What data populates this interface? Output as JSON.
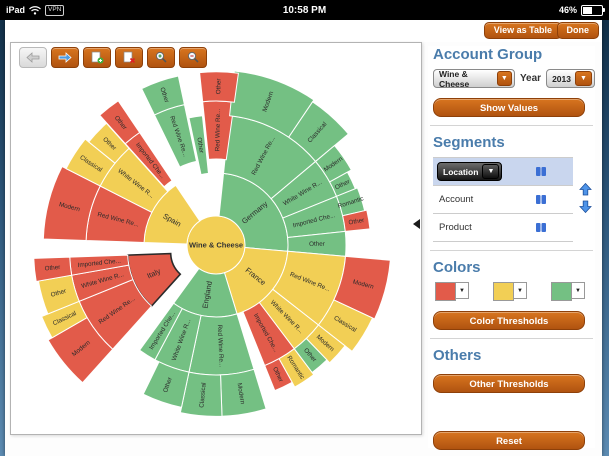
{
  "status_bar": {
    "device": "iPad",
    "vpn_badge": "VPN",
    "time": "10:58 PM",
    "battery": "46%"
  },
  "topbar": {
    "view_as_table": "View as Table",
    "done": "Done"
  },
  "toolbar": {
    "buttons": [
      "history-back",
      "history-forward",
      "export-add",
      "export-remove",
      "zoom-in",
      "zoom-out"
    ]
  },
  "sidebar": {
    "account_group": {
      "title": "Account Group",
      "group_value": "Wine & Cheese",
      "year_label": "Year",
      "year_value": "2013",
      "show_values": "Show Values"
    },
    "segments": {
      "title": "Segments",
      "rows": [
        {
          "label": "Location",
          "selected": true,
          "dropdown": true
        },
        {
          "label": "Account",
          "selected": false,
          "dropdown": false
        },
        {
          "label": "Product",
          "selected": false,
          "dropdown": false
        }
      ]
    },
    "colors": {
      "title": "Colors",
      "swatches": [
        "#E25B4A",
        "#F2CF55",
        "#74C083"
      ],
      "threshold_button": "Color Thresholds"
    },
    "others": {
      "title": "Others",
      "threshold_button": "Other Thresholds"
    },
    "reset_button": "Reset"
  },
  "chart_data": {
    "type": "sunburst",
    "hub": {
      "label": "Wine & Cheese",
      "color": "yellow"
    },
    "palette": {
      "red": "#E25B4A",
      "yellow": "#F2CF55",
      "green": "#74C083"
    },
    "rings": {
      "hub_r": 29,
      "r1": [
        29,
        72
      ],
      "r2": [
        72,
        130
      ],
      "r3_base": 130,
      "r3_extra": 45
    },
    "arcs": [
      {
        "ring": 1,
        "label": "Germany",
        "color": "green",
        "a0": 6,
        "a1": 95
      },
      {
        "ring": 1,
        "label": "France",
        "color": "yellow",
        "a0": 95,
        "a1": 163
      },
      {
        "ring": 1,
        "label": "England",
        "color": "green",
        "a0": 163,
        "a1": 216
      },
      {
        "ring": 1,
        "label": "Italy",
        "color": "red",
        "a0": 222,
        "a1": 268,
        "ea": 245,
        "ed": 18,
        "selected": true
      },
      {
        "ring": 1,
        "label": "Spain",
        "color": "yellow",
        "a0": 272,
        "a1": 326
      },
      {
        "ring": 2,
        "label": "Red Wine Re...",
        "color": "green",
        "a0": 6,
        "a1": 50
      },
      {
        "ring": 2,
        "label": "White Wine R...",
        "color": "green",
        "a0": 50,
        "a1": 68
      },
      {
        "ring": 2,
        "label": "Imported Che...",
        "color": "green",
        "a0": 68,
        "a1": 84
      },
      {
        "ring": 2,
        "label": "Other",
        "color": "green",
        "a0": 84,
        "a1": 95
      },
      {
        "ring": 2,
        "label": "Red Wine Re...",
        "color": "yellow",
        "a0": 95,
        "a1": 128
      },
      {
        "ring": 2,
        "label": "White Wine R...",
        "color": "yellow",
        "a0": 128,
        "a1": 143
      },
      {
        "ring": 2,
        "label": "Imported Che...",
        "color": "red",
        "a0": 143,
        "a1": 158
      },
      {
        "ring": 2,
        "label": "Red Wine Re...",
        "color": "green",
        "a0": 163,
        "a1": 192
      },
      {
        "ring": 2,
        "label": "White Wine R...",
        "color": "green",
        "a0": 192,
        "a1": 208
      },
      {
        "ring": 2,
        "label": "Imported Che...",
        "color": "green",
        "a0": 208,
        "a1": 216
      },
      {
        "ring": 2,
        "label": "Red Wine Re...",
        "color": "red",
        "a0": 222,
        "a1": 248,
        "ea": 245,
        "ed": 18
      },
      {
        "ring": 2,
        "label": "White Wine R...",
        "color": "red",
        "a0": 248,
        "a1": 260,
        "ea": 245,
        "ed": 18
      },
      {
        "ring": 2,
        "label": "Imported Che...",
        "color": "red",
        "a0": 260,
        "a1": 268,
        "ea": 245,
        "ed": 18
      },
      {
        "ring": 2,
        "label": "Red Wine Re...",
        "color": "red",
        "a0": 272,
        "a1": 297
      },
      {
        "ring": 2,
        "label": "White Wine R...",
        "color": "yellow",
        "a0": 297,
        "a1": 318
      },
      {
        "ring": 2,
        "label": "Imported Che...",
        "color": "red",
        "a0": 318,
        "a1": 326,
        "ea": 322,
        "ed": 6
      },
      {
        "ring": 2,
        "label": "Red Wine Re...",
        "color": "green",
        "a0": 334,
        "a1": 348,
        "ea": 341,
        "ed": 14
      },
      {
        "ring": 2,
        "label": "Other",
        "color": "green",
        "a0": 348,
        "a1": 354
      },
      {
        "ring": 2,
        "label": "Red Wine Re...",
        "color": "red",
        "a0": 354,
        "a1": 368,
        "ea": 361,
        "ed": 14
      },
      {
        "ring": 3,
        "label": "Modern",
        "color": "green",
        "a0": 6,
        "a1": 34,
        "len": 1.0
      },
      {
        "ring": 3,
        "label": "Classical",
        "color": "green",
        "a0": 34,
        "a1": 50,
        "len": 0.95
      },
      {
        "ring": 3,
        "label": "Modern",
        "color": "green",
        "a0": 50,
        "a1": 61,
        "len": 0.55
      },
      {
        "ring": 3,
        "label": "Other",
        "color": "green",
        "a0": 61,
        "a1": 68,
        "len": 0.45
      },
      {
        "ring": 3,
        "label": "Romantic",
        "color": "green",
        "a0": 68,
        "a1": 77,
        "len": 0.5
      },
      {
        "ring": 3,
        "label": "Other",
        "color": "red",
        "a0": 77,
        "a1": 84,
        "len": 0.55
      },
      {
        "ring": 3,
        "label": "Modern",
        "color": "red",
        "a0": 95,
        "a1": 115,
        "len": 1.0
      },
      {
        "ring": 3,
        "label": "Classical",
        "color": "yellow",
        "a0": 115,
        "a1": 128,
        "len": 0.95
      },
      {
        "ring": 3,
        "label": "Modern",
        "color": "yellow",
        "a0": 128,
        "a1": 136,
        "len": 0.75
      },
      {
        "ring": 3,
        "label": "Other",
        "color": "green",
        "a0": 136,
        "a1": 143,
        "len": 0.66
      },
      {
        "ring": 3,
        "label": "Romantic",
        "color": "yellow",
        "a0": 143,
        "a1": 151,
        "len": 0.72
      },
      {
        "ring": 3,
        "label": "Other",
        "color": "red",
        "a0": 151,
        "a1": 158,
        "len": 0.6
      },
      {
        "ring": 3,
        "label": "Modern",
        "color": "green",
        "a0": 163,
        "a1": 178,
        "len": 0.92
      },
      {
        "ring": 3,
        "label": "Classical",
        "color": "green",
        "a0": 178,
        "a1": 192,
        "len": 0.92
      },
      {
        "ring": 3,
        "label": "Other",
        "color": "green",
        "a0": 192,
        "a1": 206,
        "len": 0.8
      },
      {
        "ring": 3,
        "label": "Modern",
        "color": "red",
        "a0": 222,
        "a1": 240,
        "len": 1.0,
        "ea": 245,
        "ed": 18
      },
      {
        "ring": 3,
        "label": "Classical",
        "color": "yellow",
        "a0": 240,
        "a1": 248,
        "len": 0.9,
        "ea": 245,
        "ed": 18
      },
      {
        "ring": 3,
        "label": "Other",
        "color": "yellow",
        "a0": 248,
        "a1": 260,
        "len": 0.75,
        "ea": 245,
        "ed": 18
      },
      {
        "ring": 3,
        "label": "Other",
        "color": "red",
        "a0": 260,
        "a1": 268,
        "len": 0.8,
        "ea": 245,
        "ed": 18
      },
      {
        "ring": 3,
        "label": "Modern",
        "color": "red",
        "a0": 272,
        "a1": 297,
        "len": 0.95
      },
      {
        "ring": 3,
        "label": "Classical",
        "color": "yellow",
        "a0": 297,
        "a1": 309,
        "len": 0.85
      },
      {
        "ring": 3,
        "label": "Other",
        "color": "yellow",
        "a0": 309,
        "a1": 318,
        "len": 0.75
      },
      {
        "ring": 3,
        "label": "Other",
        "color": "red",
        "a0": 318,
        "a1": 326,
        "len": 0.85,
        "ea": 322,
        "ed": 6
      },
      {
        "ring": 3,
        "label": "Other",
        "color": "green",
        "a0": 334,
        "a1": 348,
        "len": 0.65,
        "ea": 341,
        "ed": 14
      },
      {
        "ring": 3,
        "label": "Other",
        "color": "red",
        "a0": 354,
        "a1": 368,
        "len": 0.65,
        "ea": 361,
        "ed": 14
      }
    ]
  }
}
